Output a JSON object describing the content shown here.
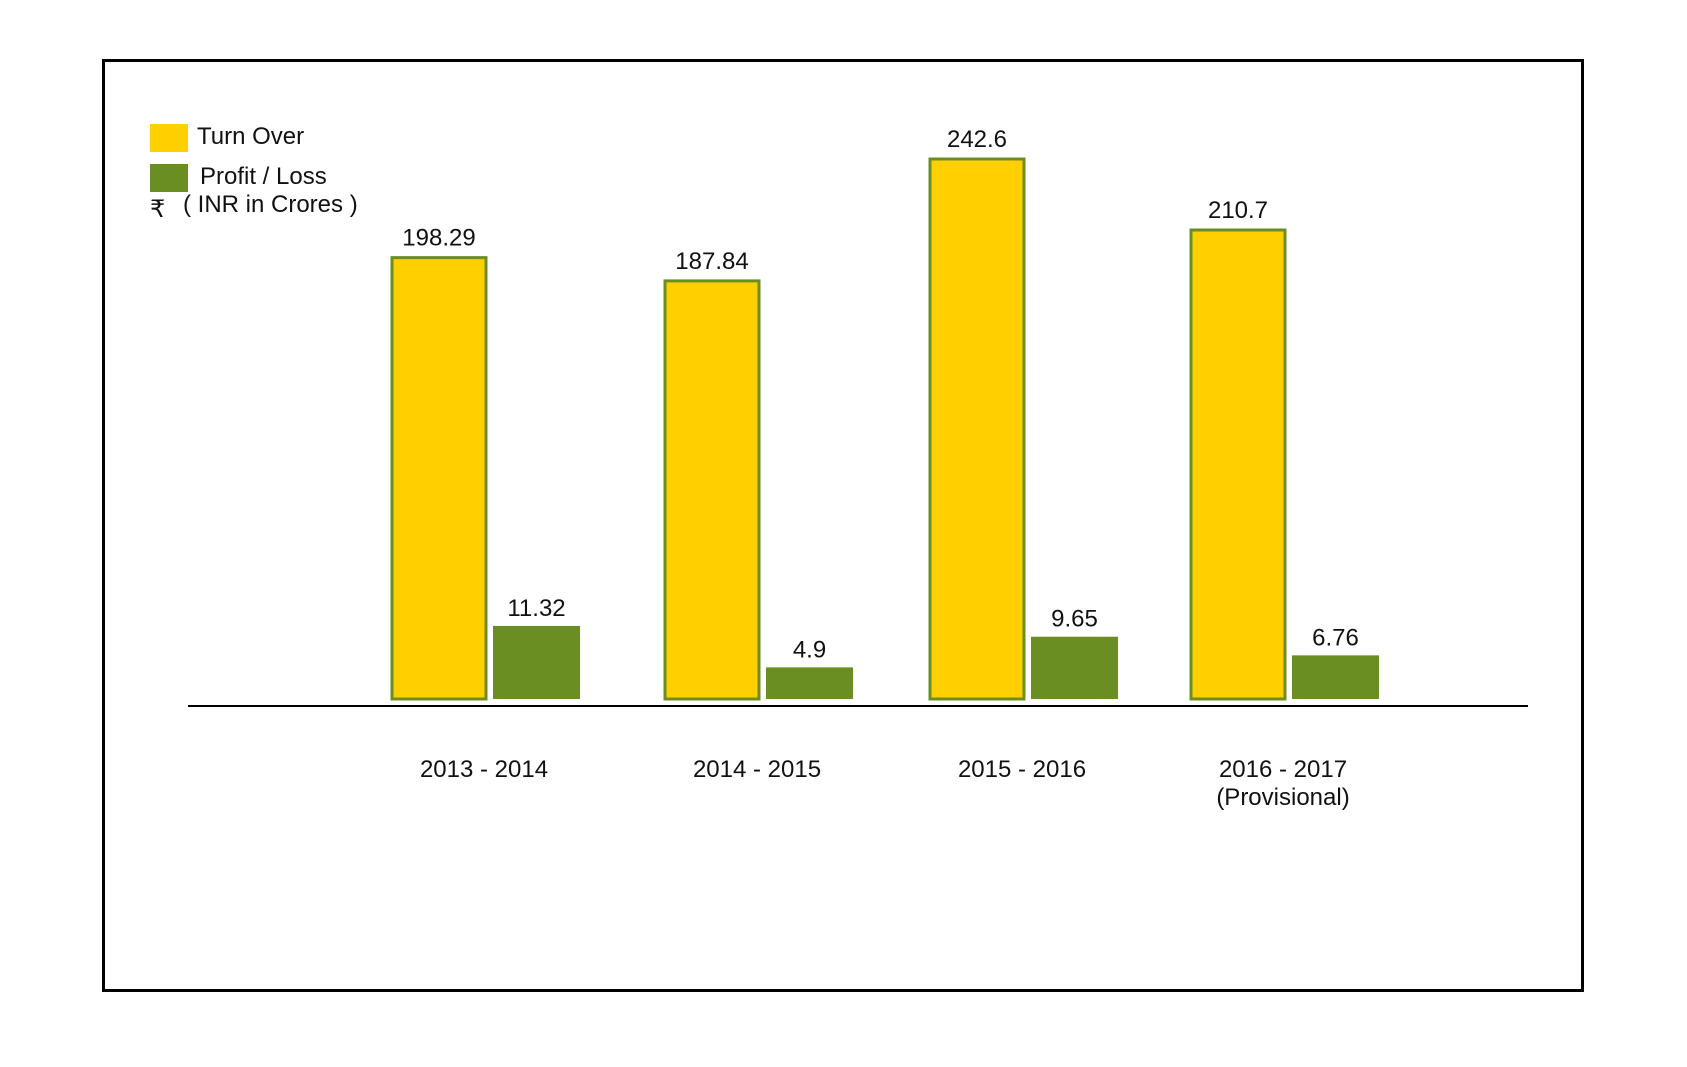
{
  "chart_data": {
    "type": "bar",
    "unit_note": "( INR in Crores )",
    "currency_symbol": "₹",
    "categories": [
      [
        "2013 - 2014"
      ],
      [
        "2014 - 2015"
      ],
      [
        "2015 - 2016"
      ],
      [
        "2016 - 2017",
        "(Provisional)"
      ]
    ],
    "series": [
      {
        "name": "Turn Over",
        "color": "#FFD000",
        "stroke": "#6B8E23",
        "values": [
          198.29,
          187.84,
          242.6,
          210.7
        ],
        "labels": [
          "198.29",
          "187.84",
          "242.6",
          "210.7"
        ]
      },
      {
        "name": "Profit / Loss",
        "color": "#6B8E23",
        "stroke": "#6B8E23",
        "values": [
          11.32,
          4.9,
          9.65,
          6.76
        ],
        "labels": [
          "11.32",
          "4.9",
          "9.65",
          "6.76"
        ]
      }
    ],
    "legend_position": "top-left",
    "grid": false
  }
}
